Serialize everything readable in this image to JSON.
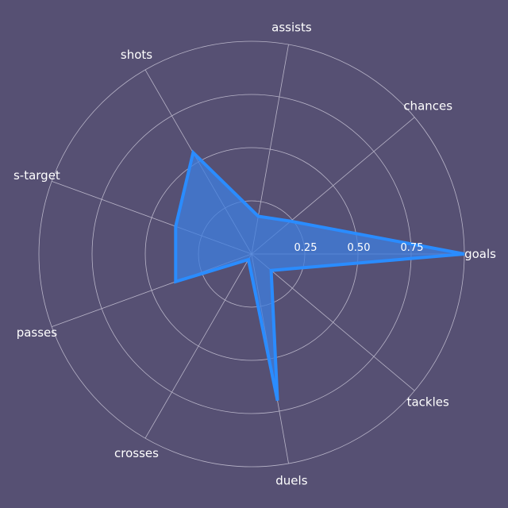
{
  "colors": {
    "background": "#565073",
    "grid": "#b9b5c9",
    "series_line": "#2a8cff",
    "series_fill": "#3f7fe0",
    "text": "#ffffff"
  },
  "chart_data": {
    "type": "radar",
    "categories": [
      "goals",
      "chances",
      "assists",
      "shots",
      "s-target",
      "passes",
      "crosses",
      "duels",
      "tackles"
    ],
    "series": [
      {
        "values": [
          1.0,
          0.24,
          0.18,
          0.55,
          0.38,
          0.38,
          0.03,
          0.7,
          0.12
        ]
      }
    ],
    "rlim": [
      0,
      1
    ],
    "r_ticks": [
      0.25,
      0.5,
      0.75
    ],
    "r_tick_labels": [
      "0.25",
      "0.50",
      "0.75"
    ],
    "grid": true
  }
}
